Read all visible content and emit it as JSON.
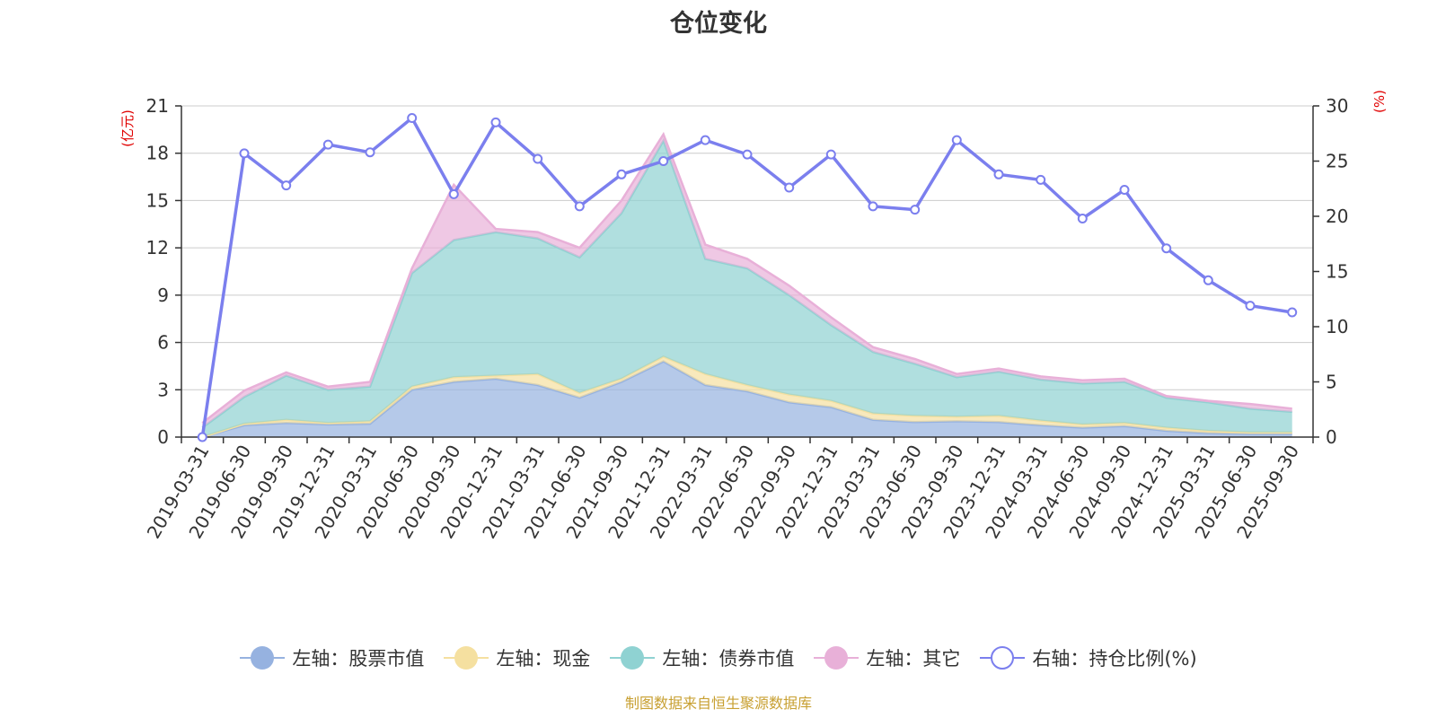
{
  "title": "仓位变化",
  "source_note": "制图数据来自恒生聚源数据库",
  "colors": {
    "stock": "#96b2e0",
    "cash": "#f5e0a0",
    "bond": "#8fd2d2",
    "other": "#e8b0d8",
    "ratio": "#7b7fee",
    "unit_label": "#e00000",
    "axis": "#333333",
    "grid": "#cccccc"
  },
  "legend": [
    {
      "key": "stock",
      "label": "左轴：股票市值",
      "shape": "filled"
    },
    {
      "key": "cash",
      "label": "左轴：现金",
      "shape": "filled"
    },
    {
      "key": "bond",
      "label": "左轴：债券市值",
      "shape": "filled"
    },
    {
      "key": "other",
      "label": "左轴：其它",
      "shape": "filled"
    },
    {
      "key": "ratio",
      "label": "右轴：持仓比例(%)",
      "shape": "hollow"
    }
  ],
  "chart_data": {
    "type": "area",
    "title": "仓位变化",
    "stacked": true,
    "categories": [
      "2019-03-31",
      "2019-06-30",
      "2019-09-30",
      "2019-12-31",
      "2020-03-31",
      "2020-06-30",
      "2020-09-30",
      "2020-12-31",
      "2021-03-31",
      "2021-06-30",
      "2021-09-30",
      "2021-12-31",
      "2022-03-31",
      "2022-06-30",
      "2022-09-30",
      "2022-12-31",
      "2023-03-31",
      "2023-06-30",
      "2023-09-30",
      "2023-12-31",
      "2024-03-31",
      "2024-06-30",
      "2024-09-30",
      "2024-12-31",
      "2025-03-31",
      "2025-06-30",
      "2025-09-30"
    ],
    "left_axis": {
      "label": "(亿元)",
      "min": 0,
      "max": 21,
      "ticks": [
        0,
        3,
        6,
        9,
        12,
        15,
        18,
        21
      ]
    },
    "right_axis": {
      "label": "(%)",
      "min": 0,
      "max": 30,
      "ticks": [
        0,
        5,
        10,
        15,
        20,
        25,
        30
      ]
    },
    "series": [
      {
        "name": "左轴：股票市值",
        "key": "stock",
        "axis": "left",
        "values": [
          0.0,
          0.75,
          0.9,
          0.8,
          0.85,
          3.0,
          3.5,
          3.7,
          3.3,
          2.5,
          3.5,
          4.8,
          3.3,
          2.9,
          2.2,
          1.9,
          1.1,
          0.95,
          1.0,
          0.95,
          0.75,
          0.6,
          0.7,
          0.4,
          0.25,
          0.2,
          0.2
        ]
      },
      {
        "name": "左轴：现金",
        "key": "cash",
        "axis": "left",
        "values": [
          0.0,
          0.1,
          0.2,
          0.1,
          0.15,
          0.2,
          0.3,
          0.2,
          0.7,
          0.3,
          0.2,
          0.3,
          0.7,
          0.4,
          0.5,
          0.4,
          0.4,
          0.4,
          0.3,
          0.4,
          0.3,
          0.2,
          0.2,
          0.2,
          0.15,
          0.1,
          0.1
        ]
      },
      {
        "name": "左轴：债券市值",
        "key": "bond",
        "axis": "left",
        "values": [
          0.6,
          1.7,
          2.8,
          2.1,
          2.2,
          7.2,
          8.7,
          9.1,
          8.6,
          8.6,
          10.5,
          13.7,
          7.3,
          7.4,
          6.3,
          4.8,
          3.9,
          3.3,
          2.5,
          2.8,
          2.6,
          2.6,
          2.6,
          1.9,
          1.8,
          1.5,
          1.3
        ]
      },
      {
        "name": "左轴：其它",
        "key": "other",
        "axis": "left",
        "values": [
          0.3,
          0.4,
          0.2,
          0.2,
          0.3,
          0.3,
          3.5,
          0.2,
          0.4,
          0.6,
          0.8,
          0.4,
          0.9,
          0.6,
          0.6,
          0.5,
          0.3,
          0.3,
          0.2,
          0.2,
          0.2,
          0.2,
          0.2,
          0.1,
          0.1,
          0.3,
          0.2
        ]
      },
      {
        "name": "右轴：持仓比例(%)",
        "key": "ratio",
        "axis": "right",
        "type": "line",
        "values": [
          0,
          25.7,
          22.8,
          26.5,
          25.8,
          28.9,
          22.0,
          28.5,
          25.2,
          20.9,
          23.8,
          25.0,
          26.9,
          25.6,
          22.6,
          25.6,
          20.9,
          20.6,
          26.9,
          23.8,
          23.3,
          19.8,
          22.4,
          17.1,
          14.2,
          11.9,
          11.3
        ]
      }
    ]
  }
}
